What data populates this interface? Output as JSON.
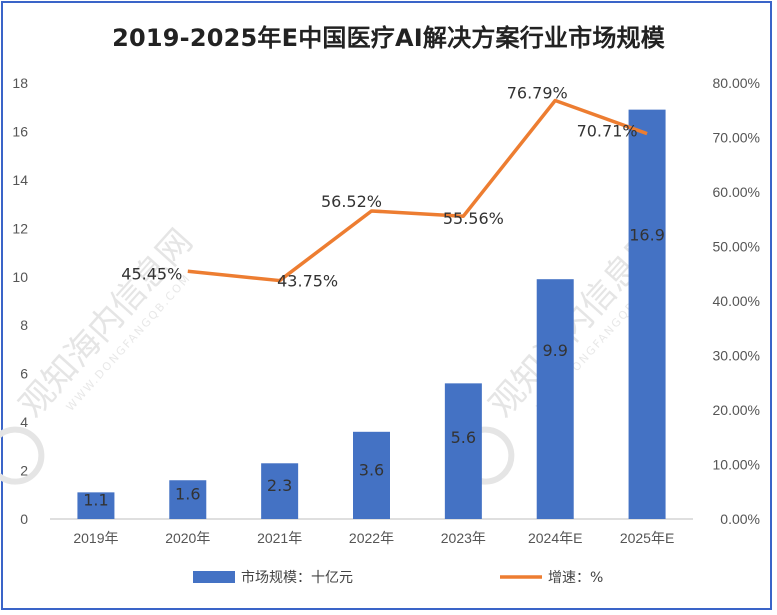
{
  "chart_data": {
    "type": "bar",
    "title": "2019-2025年E中国医疗AI解决方案行业市场规模",
    "categories": [
      "2019年",
      "2020年",
      "2021年",
      "2022年",
      "2023年",
      "2024年E",
      "2025年E"
    ],
    "series": [
      {
        "name": "市场规模：十亿元",
        "type": "bar",
        "values": [
          1.1,
          1.6,
          2.3,
          3.6,
          5.6,
          9.9,
          16.9
        ],
        "labels": [
          "1.1",
          "1.6",
          "2.3",
          "3.6",
          "5.6",
          "9.9",
          "16.9"
        ],
        "color": "#4472c4",
        "axis": "left"
      },
      {
        "name": "增速：%",
        "type": "line",
        "values": [
          null,
          45.45,
          43.75,
          56.52,
          55.56,
          76.79,
          70.71
        ],
        "labels": [
          null,
          "45.45%",
          "43.75%",
          "56.52%",
          "55.56%",
          "76.79%",
          "70.71%"
        ],
        "color": "#ed7d31",
        "axis": "right"
      }
    ],
    "y_left": {
      "ylim": [
        0,
        18
      ],
      "ticks": [
        "0",
        "2",
        "4",
        "6",
        "8",
        "10",
        "12",
        "14",
        "16",
        "18"
      ]
    },
    "y_right": {
      "ylim": [
        0,
        80
      ],
      "ticks": [
        "0.00%",
        "10.00%",
        "20.00%",
        "30.00%",
        "40.00%",
        "50.00%",
        "60.00%",
        "70.00%",
        "80.00%"
      ]
    },
    "grid": false,
    "legend_position": "bottom"
  },
  "watermark": {
    "text": "观知海内信息网",
    "subtext": "WWW.DONGFANGQB.COM"
  },
  "colors": {
    "border": "#3a64c8",
    "bar": "#4472c4",
    "line": "#ed7d31"
  }
}
